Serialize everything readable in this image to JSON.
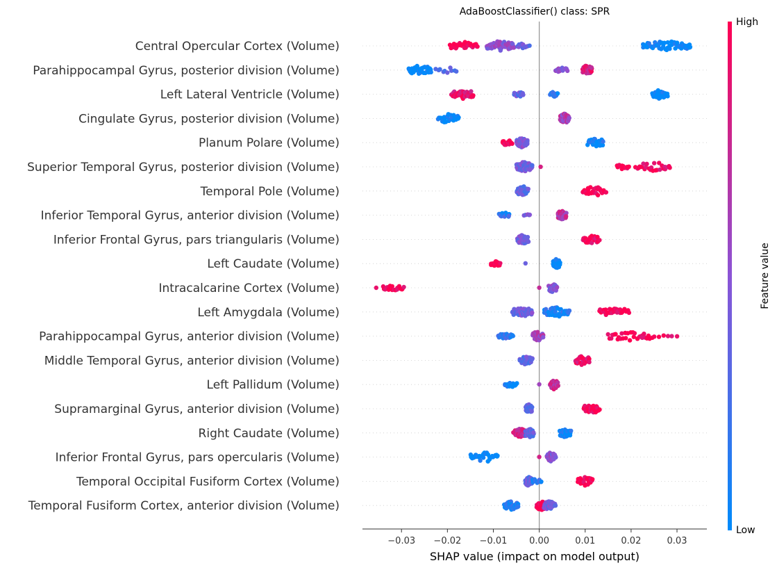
{
  "chart_data": {
    "type": "scatter",
    "subtype": "shap-beeswarm",
    "title": "AdaBoostClassifier() class: SPR",
    "xlabel": "SHAP value (impact on model output)",
    "xlim": [
      -0.0385,
      0.0365
    ],
    "xticks": [
      -0.03,
      -0.02,
      -0.01,
      0.0,
      0.01,
      0.02,
      0.03
    ],
    "xtick_labels": [
      "−0.03",
      "−0.02",
      "−0.01",
      "0.00",
      "0.01",
      "0.02",
      "0.03"
    ],
    "grid": false,
    "zero_line": true,
    "colorbar": {
      "title": "Feature value",
      "high_label": "High",
      "low_label": "Low",
      "low_color": "#008bfb",
      "high_color": "#ff0052"
    },
    "features": [
      {
        "name": "Central Opercular Cortex (Volume)",
        "clusters": [
          [
            -0.0195,
            -0.0135,
            1.0,
            30
          ],
          [
            -0.0115,
            -0.0055,
            0.5,
            55
          ],
          [
            -0.0048,
            -0.0022,
            0.4,
            12
          ],
          [
            0.0225,
            0.033,
            0.0,
            55
          ]
        ]
      },
      {
        "name": "Parahippocampal Gyrus, posterior division (Volume)",
        "clusters": [
          [
            -0.0285,
            -0.0235,
            0.0,
            40
          ],
          [
            -0.0225,
            -0.018,
            0.25,
            10
          ],
          [
            0.0035,
            0.006,
            0.45,
            15
          ],
          [
            0.0095,
            0.0115,
            0.85,
            45
          ]
        ]
      },
      {
        "name": "Left Lateral Ventricle (Volume)",
        "clusters": [
          [
            -0.019,
            -0.0145,
            0.9,
            40
          ],
          [
            -0.0055,
            -0.0035,
            0.35,
            18
          ],
          [
            0.0025,
            0.004,
            0.15,
            20
          ],
          [
            0.0245,
            0.028,
            0.0,
            28
          ]
        ]
      },
      {
        "name": "Cingulate Gyrus, posterior division (Volume)",
        "clusters": [
          [
            -0.022,
            -0.0175,
            0.0,
            30
          ],
          [
            0.0045,
            0.0065,
            0.65,
            45
          ]
        ]
      },
      {
        "name": "Planum Polare (Volume)",
        "clusters": [
          [
            -0.008,
            -0.006,
            1.0,
            18
          ],
          [
            -0.005,
            -0.0025,
            0.45,
            40
          ],
          [
            0.0105,
            0.014,
            0.05,
            25
          ]
        ]
      },
      {
        "name": "Superior Temporal Gyrus, posterior division (Volume)",
        "clusters": [
          [
            -0.005,
            -0.0015,
            0.4,
            65
          ],
          [
            0.0003,
            0.0003,
            0.9,
            1
          ],
          [
            0.017,
            0.0195,
            1.0,
            12
          ],
          [
            0.021,
            0.0285,
            0.95,
            25
          ]
        ]
      },
      {
        "name": "Temporal Pole (Volume)",
        "clusters": [
          [
            -0.0048,
            -0.0025,
            0.35,
            45
          ],
          [
            0.0095,
            0.0145,
            1.0,
            30
          ]
        ]
      },
      {
        "name": "Inferior Temporal Gyrus, anterior division (Volume)",
        "clusters": [
          [
            -0.0088,
            -0.0065,
            0.15,
            15
          ],
          [
            -0.0032,
            -0.002,
            0.45,
            5
          ],
          [
            0.004,
            0.0058,
            0.7,
            40
          ]
        ]
      },
      {
        "name": "Inferior Frontal Gyrus, pars triangularis (Volume)",
        "clusters": [
          [
            -0.0048,
            -0.0025,
            0.4,
            45
          ],
          [
            0.0095,
            0.013,
            0.95,
            30
          ]
        ]
      },
      {
        "name": "Left Caudate (Volume)",
        "clusters": [
          [
            -0.0105,
            -0.0085,
            1.0,
            18
          ],
          [
            -0.003,
            -0.003,
            0.3,
            1
          ],
          [
            0.003,
            0.0045,
            0.0,
            35
          ]
        ]
      },
      {
        "name": "Intracalcarine Cortex (Volume)",
        "clusters": [
          [
            -0.0355,
            -0.0355,
            1.0,
            1
          ],
          [
            -0.034,
            -0.0295,
            1.0,
            18
          ],
          [
            0.0,
            0.0,
            0.6,
            1
          ],
          [
            0.0022,
            0.0038,
            0.45,
            25
          ]
        ]
      },
      {
        "name": "Left Amygdala (Volume)",
        "clusters": [
          [
            -0.0058,
            -0.0015,
            0.4,
            65
          ],
          [
            0.001,
            0.0065,
            0.1,
            40
          ],
          [
            0.013,
            0.0195,
            1.0,
            30
          ]
        ]
      },
      {
        "name": "Parahippocampal Gyrus, anterior division (Volume)",
        "clusters": [
          [
            -0.009,
            -0.0058,
            0.15,
            20
          ],
          [
            -0.0015,
            0.0008,
            0.6,
            30
          ],
          [
            0.015,
            0.0245,
            1.0,
            30
          ],
          [
            0.025,
            0.03,
            0.95,
            6
          ]
        ]
      },
      {
        "name": "Middle Temporal Gyrus, anterior division (Volume)",
        "clusters": [
          [
            -0.0042,
            -0.0015,
            0.35,
            30
          ],
          [
            0.0078,
            0.011,
            0.9,
            28
          ]
        ]
      },
      {
        "name": "Left Pallidum (Volume)",
        "clusters": [
          [
            -0.0075,
            -0.005,
            0.05,
            15
          ],
          [
            0.0,
            0.0,
            0.5,
            1
          ],
          [
            0.0025,
            0.004,
            0.75,
            30
          ]
        ]
      },
      {
        "name": "Supramarginal Gyrus, anterior division (Volume)",
        "clusters": [
          [
            -0.003,
            -0.0015,
            0.35,
            30
          ],
          [
            0.0098,
            0.013,
            1.0,
            28
          ]
        ]
      },
      {
        "name": "Right Caudate (Volume)",
        "clusters": [
          [
            -0.0055,
            -0.003,
            0.8,
            25
          ],
          [
            -0.003,
            -0.0012,
            0.35,
            30
          ],
          [
            0.0045,
            0.0068,
            0.05,
            30
          ]
        ]
      },
      {
        "name": "Inferior Frontal Gyrus, pars opercularis (Volume)",
        "clusters": [
          [
            -0.015,
            -0.009,
            0.0,
            30
          ],
          [
            0.0,
            0.0,
            0.9,
            1
          ],
          [
            0.0018,
            0.0035,
            0.5,
            35
          ]
        ]
      },
      {
        "name": "Temporal Occipital Fusiform Cortex (Volume)",
        "clusters": [
          [
            -0.003,
            -0.0015,
            0.35,
            35
          ],
          [
            -0.0015,
            0.0005,
            0.15,
            10
          ],
          [
            0.0085,
            0.0115,
            1.0,
            30
          ]
        ]
      },
      {
        "name": "Temporal Fusiform Cortex, anterior division (Volume)",
        "clusters": [
          [
            -0.0075,
            -0.0045,
            0.1,
            40
          ],
          [
            -0.0005,
            0.0015,
            1.0,
            35
          ],
          [
            0.001,
            0.0035,
            0.4,
            45
          ]
        ]
      }
    ]
  }
}
